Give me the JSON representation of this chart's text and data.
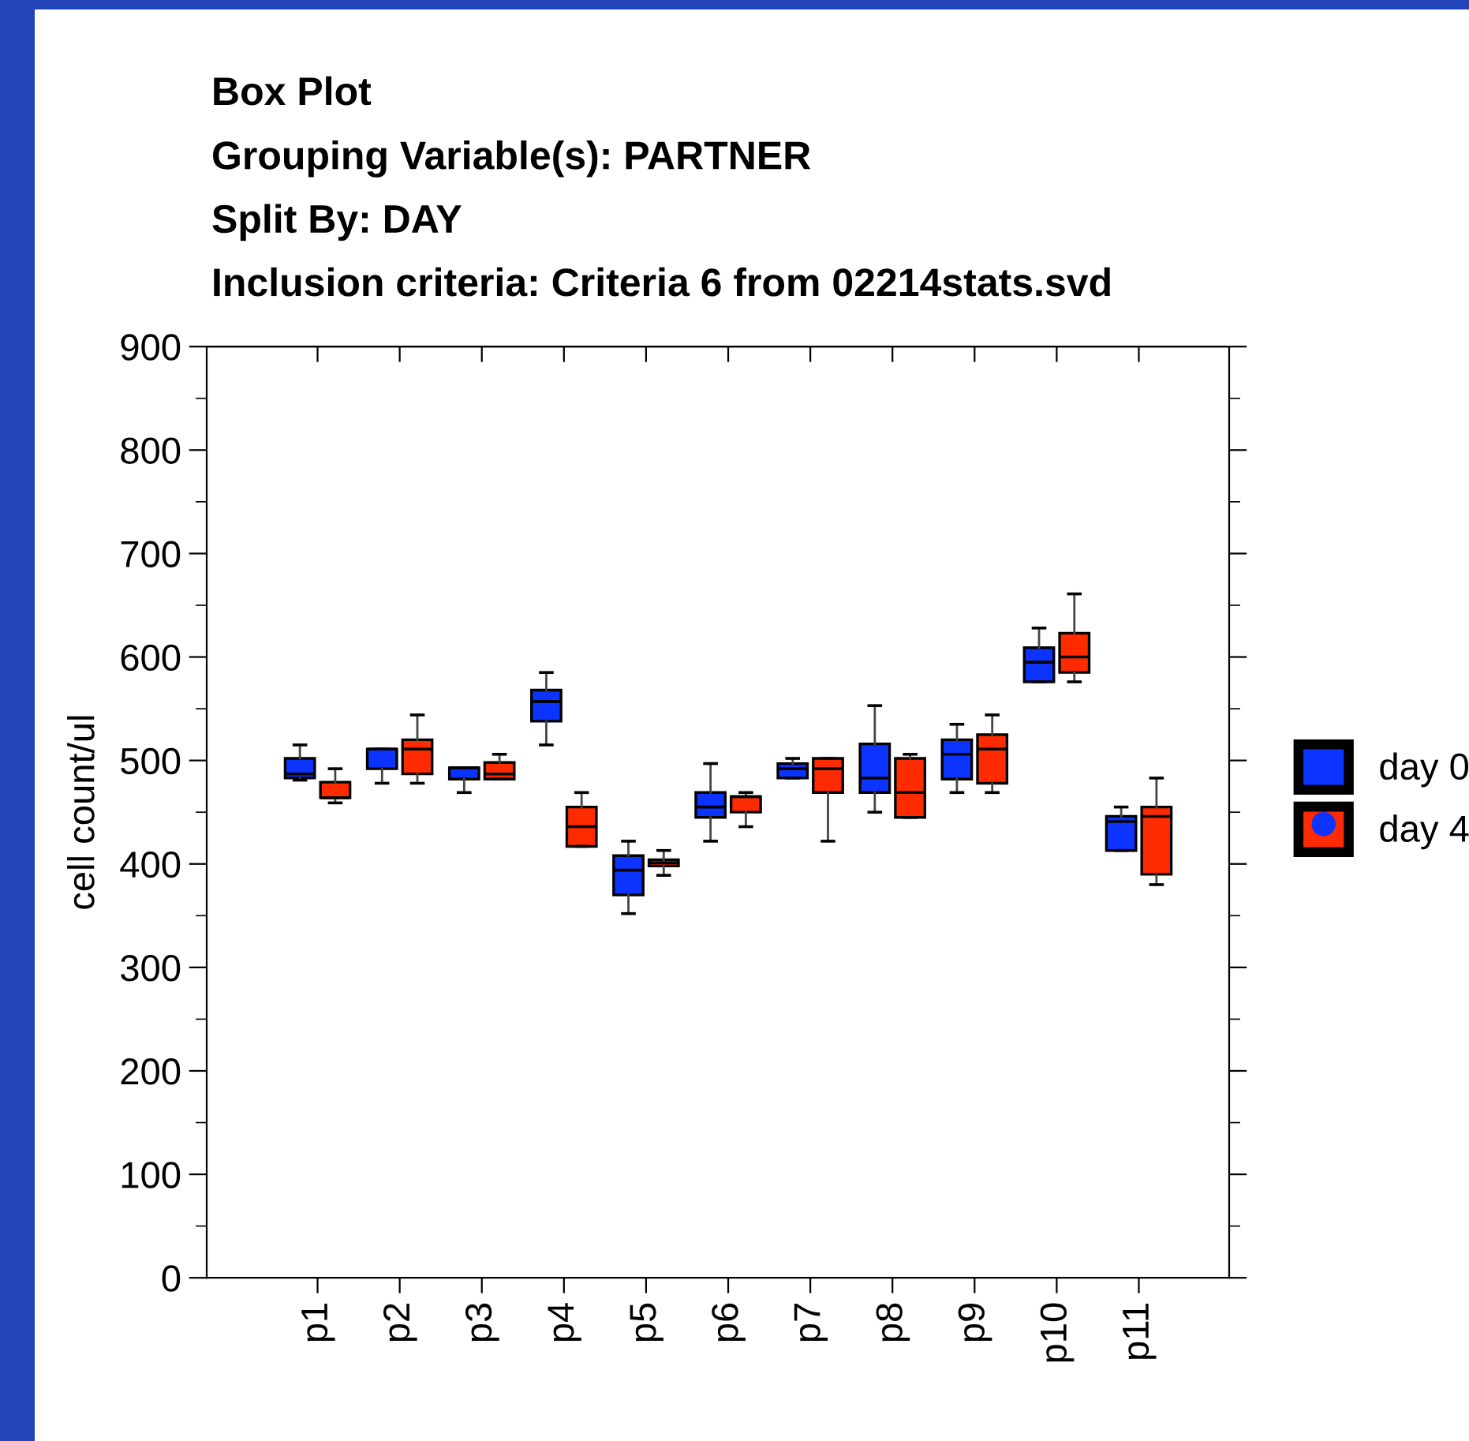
{
  "chart_data": {
    "type": "box",
    "title": "Box Plot",
    "subtitle": "Grouping Variable(s): PARTNER\nSplit By: DAY\nInclusion criteria: Criteria 6 from 02214stats.svd",
    "ylabel": "cell count/ul",
    "categories": [
      "p1",
      "p2",
      "p3",
      "p4",
      "p5",
      "p6",
      "p7",
      "p8",
      "p9",
      "p10",
      "p11"
    ],
    "series": [
      {
        "name": "day 0",
        "color": "#0d33ff",
        "boxes": [
          {
            "low": 481,
            "q1": 483,
            "median": 487,
            "q3": 502,
            "high": 515
          },
          {
            "low": 478,
            "q1": 492,
            "median": 511,
            "q3": 511,
            "high": 511
          },
          {
            "low": 469,
            "q1": 482,
            "median": 493,
            "q3": 493,
            "high": 493
          },
          {
            "low": 515,
            "q1": 538,
            "median": 557,
            "q3": 568,
            "high": 585
          },
          {
            "low": 352,
            "q1": 370,
            "median": 394,
            "q3": 408,
            "high": 422
          },
          {
            "low": 422,
            "q1": 445,
            "median": 455,
            "q3": 469,
            "high": 497
          },
          {
            "low": 483,
            "q1": 483,
            "median": 492,
            "q3": 497,
            "high": 502
          },
          {
            "low": 450,
            "q1": 469,
            "median": 483,
            "q3": 516,
            "high": 553
          },
          {
            "low": 469,
            "q1": 482,
            "median": 506,
            "q3": 520,
            "high": 535
          },
          {
            "low": 576,
            "q1": 576,
            "median": 595,
            "q3": 609,
            "high": 628
          },
          {
            "low": 413,
            "q1": 413,
            "median": 441,
            "q3": 446,
            "high": 455
          }
        ]
      },
      {
        "name": "day 4",
        "color": "#ff2b00",
        "boxes": [
          {
            "low": 459,
            "q1": 464,
            "median": 464,
            "q3": 479,
            "high": 492
          },
          {
            "low": 478,
            "q1": 487,
            "median": 511,
            "q3": 520,
            "high": 544
          },
          {
            "low": 482,
            "q1": 482,
            "median": 487,
            "q3": 498,
            "high": 506
          },
          {
            "low": 417,
            "q1": 417,
            "median": 436,
            "q3": 455,
            "high": 469
          },
          {
            "low": 389,
            "q1": 398,
            "median": 401,
            "q3": 404,
            "high": 413
          },
          {
            "low": 436,
            "q1": 450,
            "median": 465,
            "q3": 465,
            "high": 469
          },
          {
            "low": 422,
            "q1": 469,
            "median": 492,
            "q3": 502,
            "high": 502
          },
          {
            "low": 445,
            "q1": 445,
            "median": 469,
            "q3": 502,
            "high": 506
          },
          {
            "low": 469,
            "q1": 478,
            "median": 511,
            "q3": 525,
            "high": 544
          },
          {
            "low": 576,
            "q1": 585,
            "median": 600,
            "q3": 623,
            "high": 661
          },
          {
            "low": 380,
            "q1": 390,
            "median": 446,
            "q3": 455,
            "high": 483
          }
        ]
      }
    ],
    "ylim": [
      0,
      900
    ],
    "yticks": [
      0,
      100,
      200,
      300,
      400,
      500,
      600,
      700,
      800,
      900
    ],
    "legend": "right",
    "grid": false
  }
}
